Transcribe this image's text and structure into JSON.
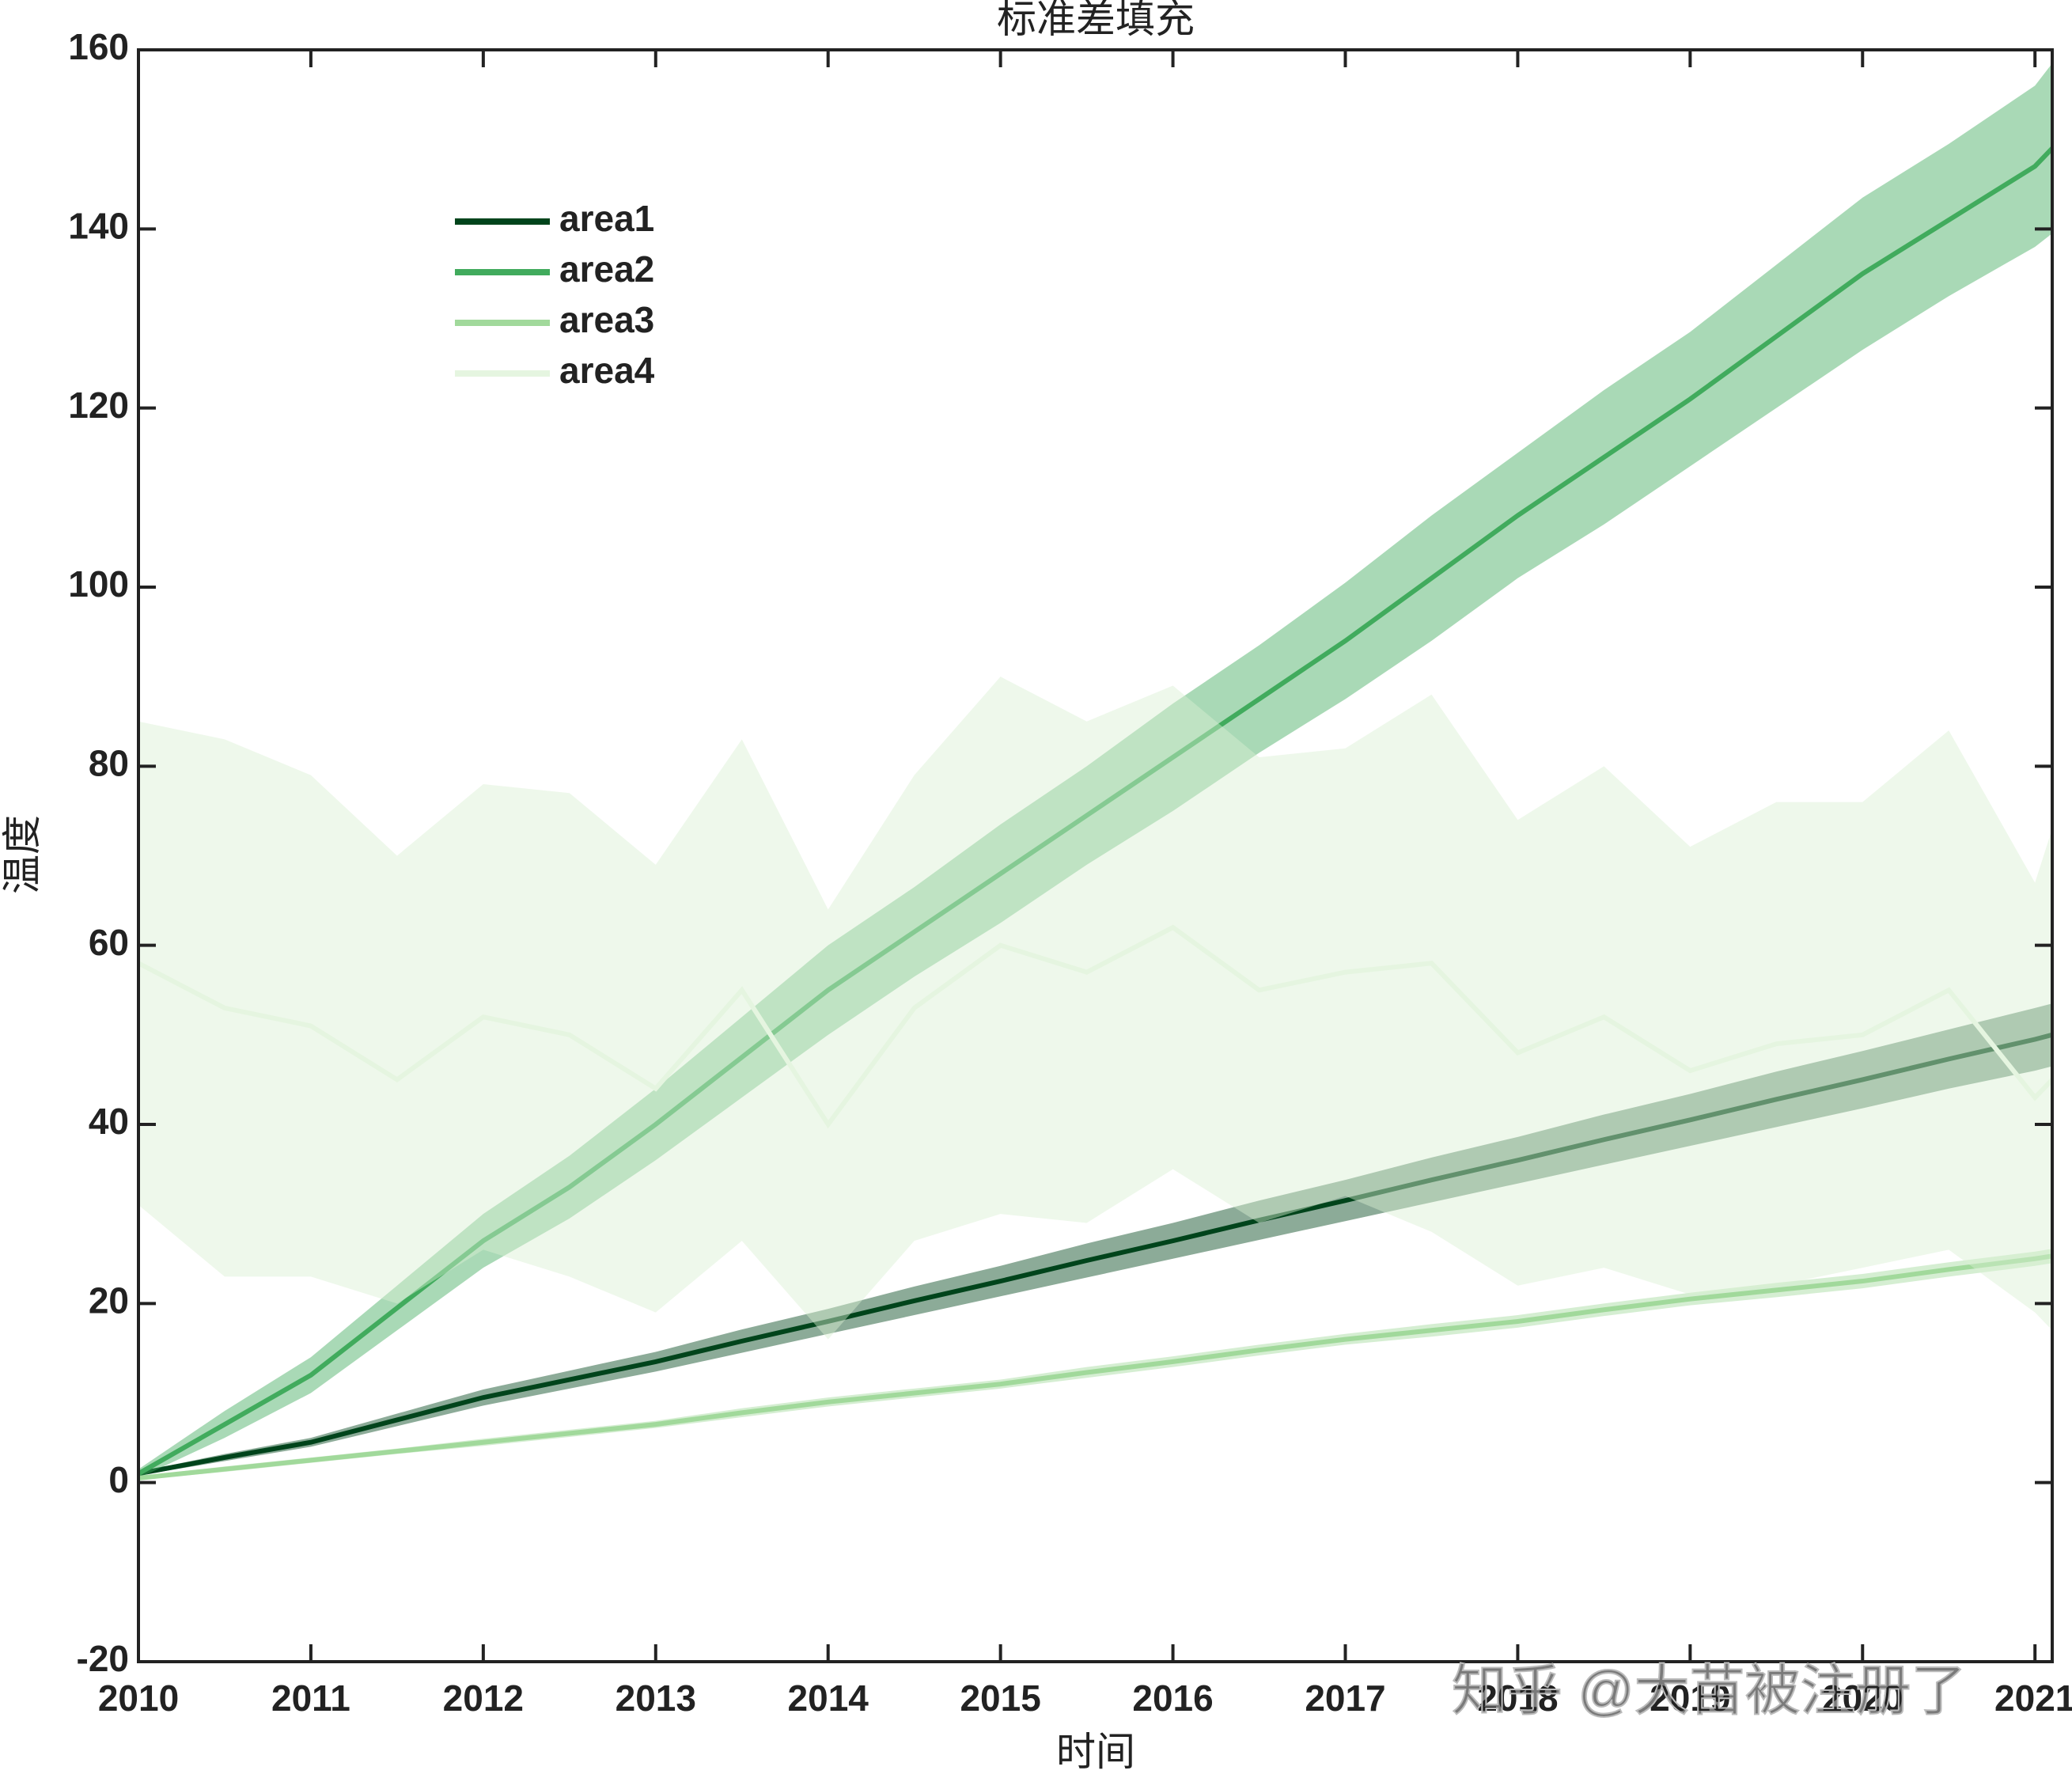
{
  "chart_data": {
    "type": "line-band",
    "title": "标准差填充",
    "xlabel": "时间",
    "ylabel": "温度",
    "watermark": "知乎 @大苗被注册了",
    "x": [
      2010,
      2010.5,
      2011,
      2011.5,
      2012,
      2012.5,
      2013,
      2013.5,
      2014,
      2014.5,
      2015,
      2015.5,
      2016,
      2016.5,
      2017,
      2017.5,
      2018,
      2018.5,
      2019,
      2019.5,
      2020,
      2020.5,
      2021,
      2021.1
    ],
    "series": [
      {
        "name": "area1",
        "color": "#00441b",
        "band_color": "#00441b",
        "values": [
          1,
          2.8,
          4.5,
          7,
          9.5,
          11.5,
          13.5,
          15.8,
          18,
          20.3,
          22.5,
          24.8,
          27,
          29.3,
          31.5,
          33.8,
          36,
          38.3,
          40.5,
          42.8,
          45,
          47.3,
          49.5,
          50
        ],
        "std": [
          0.2,
          0.4,
          0.5,
          0.7,
          0.9,
          1,
          1.1,
          1.3,
          1.4,
          1.6,
          1.7,
          1.9,
          2,
          2.2,
          2.3,
          2.5,
          2.6,
          2.8,
          2.9,
          3.1,
          3.2,
          3.3,
          3.5,
          3.5
        ]
      },
      {
        "name": "area2",
        "color": "#41ab5d",
        "band_color": "#41ab5d",
        "values": [
          1,
          6.5,
          12,
          19.5,
          27,
          33,
          40,
          47.5,
          55,
          61.5,
          68,
          74.5,
          81,
          87.5,
          94,
          101,
          108,
          114.5,
          121,
          128,
          135,
          141,
          147,
          149
        ],
        "std": [
          0.5,
          1.5,
          2,
          2.5,
          3,
          3.5,
          4,
          4.5,
          5,
          5,
          5.5,
          5.5,
          6,
          6,
          6.5,
          7,
          7,
          7.5,
          7.5,
          8,
          8.5,
          8.5,
          9,
          9.5
        ]
      },
      {
        "name": "area3",
        "color": "#a1d99b",
        "band_color": "#a1d99b",
        "values": [
          0.5,
          1.5,
          2.5,
          3.5,
          4.5,
          5.5,
          6.5,
          7.8,
          9,
          10,
          11,
          12.3,
          13.5,
          14.8,
          16,
          17,
          18,
          19.3,
          20.5,
          21.5,
          22.5,
          23.8,
          25,
          25.3
        ],
        "std": [
          0.2,
          0.3,
          0.3,
          0.3,
          0.4,
          0.4,
          0.4,
          0.5,
          0.5,
          0.5,
          0.5,
          0.6,
          0.6,
          0.6,
          0.6,
          0.7,
          0.7,
          0.7,
          0.7,
          0.8,
          0.8,
          0.8,
          0.8,
          0.8
        ]
      },
      {
        "name": "area4",
        "color": "#e5f5e0",
        "band_color": "#d9efd3",
        "values": [
          58,
          53,
          51,
          45,
          52,
          50,
          44,
          55,
          40,
          53,
          60,
          57,
          62,
          55,
          57,
          58,
          48,
          52,
          46,
          49,
          50,
          55,
          43,
          45
        ],
        "std": [
          27,
          30,
          28,
          25,
          26,
          27,
          25,
          28,
          24,
          26,
          30,
          28,
          27,
          26,
          25,
          30,
          26,
          28,
          25,
          27,
          26,
          29,
          24,
          28
        ]
      }
    ],
    "xlim": [
      2010,
      2021.1
    ],
    "ylim": [
      -20,
      160
    ],
    "xticks": [
      2010,
      2011,
      2012,
      2013,
      2014,
      2015,
      2016,
      2017,
      2018,
      2019,
      2020,
      2021
    ],
    "yticks": [
      -20,
      0,
      20,
      40,
      60,
      80,
      100,
      120,
      140,
      160
    ],
    "legend": "upper-left"
  }
}
